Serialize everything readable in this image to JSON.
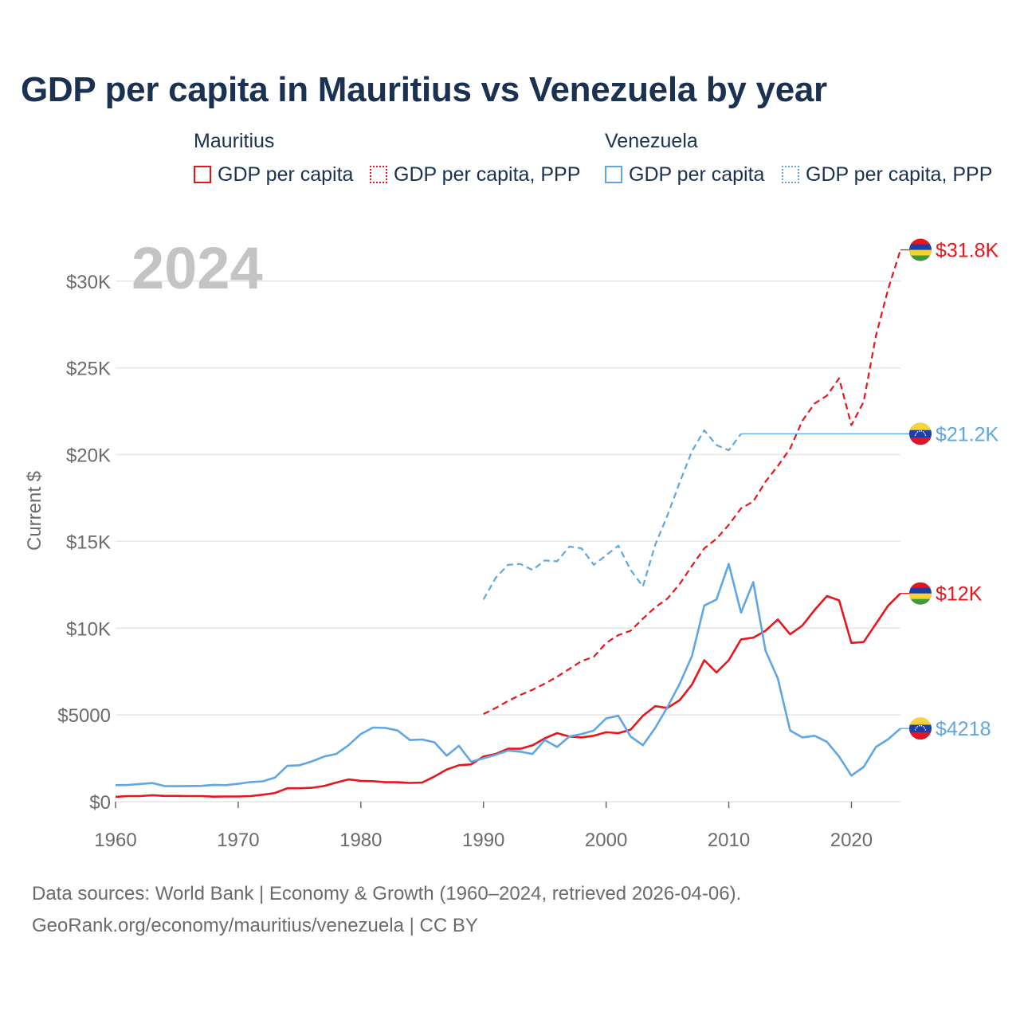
{
  "title": "GDP per capita in Mauritius vs Venezuela by year",
  "legend": {
    "mauritius": {
      "title": "Mauritius",
      "gdp": "GDP per capita",
      "ppp": "GDP per capita, PPP"
    },
    "venezuela": {
      "title": "Venezuela",
      "gdp": "GDP per capita",
      "ppp": "GDP per capita, PPP"
    }
  },
  "colors": {
    "mauritius": "#e8151c",
    "venezuela": "#5fa6e3",
    "grid": "#e6e6e6",
    "axis_text": "#6b6b6b",
    "year_watermark": "#c4c4c4"
  },
  "chart_data": {
    "type": "line",
    "year_label": "2024",
    "ylabel": "Current $",
    "xlim": [
      1960,
      2024
    ],
    "ylim": [
      0,
      32000
    ],
    "x_ticks": [
      {
        "value": 1960,
        "label": "1960"
      },
      {
        "value": 1970,
        "label": "1970"
      },
      {
        "value": 1980,
        "label": "1980"
      },
      {
        "value": 1990,
        "label": "1990"
      },
      {
        "value": 2000,
        "label": "2000"
      },
      {
        "value": 2010,
        "label": "2010"
      },
      {
        "value": 2020,
        "label": "2020"
      }
    ],
    "y_ticks": [
      {
        "value": 0,
        "label": "$0"
      },
      {
        "value": 5000,
        "label": "$5000"
      },
      {
        "value": 10000,
        "label": "$10K"
      },
      {
        "value": 15000,
        "label": "$15K"
      },
      {
        "value": 20000,
        "label": "$20K"
      },
      {
        "value": 25000,
        "label": "$25K"
      },
      {
        "value": 30000,
        "label": "$30K"
      }
    ],
    "series": [
      {
        "name": "Mauritius GDP per capita",
        "country": "mauritius",
        "style": "solid",
        "end_label": "$12K",
        "start_year": 1960,
        "values": [
          280,
          320,
          320,
          370,
          330,
          330,
          320,
          320,
          290,
          300,
          300,
          320,
          400,
          500,
          770,
          770,
          800,
          900,
          1100,
          1280,
          1200,
          1180,
          1120,
          1120,
          1080,
          1100,
          1450,
          1850,
          2100,
          2150,
          2600,
          2750,
          3050,
          3050,
          3250,
          3650,
          3950,
          3750,
          3700,
          3800,
          4000,
          3950,
          4150,
          4950,
          5500,
          5400,
          5850,
          6750,
          8150,
          7450,
          8150,
          9350,
          9450,
          9850,
          10500,
          9650,
          10150,
          11050,
          11850,
          11600,
          9150,
          9200,
          10250,
          11300,
          12000
        ]
      },
      {
        "name": "Mauritius GDP per capita, PPP",
        "country": "mauritius",
        "style": "dashed",
        "end_label": "$31.8K",
        "start_year": 1990,
        "values": [
          5050,
          5400,
          5800,
          6150,
          6450,
          6800,
          7200,
          7650,
          8100,
          8350,
          9150,
          9600,
          9850,
          10550,
          11200,
          11700,
          12550,
          13600,
          14600,
          15150,
          15950,
          16900,
          17300,
          18450,
          19350,
          20350,
          21950,
          22950,
          23400,
          24400,
          21700,
          23050,
          26850,
          29550,
          31800
        ]
      },
      {
        "name": "Venezuela GDP per capita",
        "country": "venezuela",
        "style": "solid",
        "end_label": "$4218",
        "start_year": 1960,
        "values": [
          950,
          960,
          1020,
          1070,
          900,
          890,
          900,
          910,
          970,
          950,
          1030,
          1130,
          1170,
          1390,
          2060,
          2100,
          2320,
          2600,
          2750,
          3250,
          3900,
          4270,
          4250,
          4100,
          3550,
          3580,
          3420,
          2650,
          3220,
          2300,
          2500,
          2700,
          2950,
          2880,
          2750,
          3550,
          3150,
          3750,
          3900,
          4100,
          4800,
          4950,
          3750,
          3250,
          4250,
          5450,
          6800,
          8400,
          11300,
          11650,
          13700,
          10900,
          12650,
          8700,
          7100,
          4100,
          3700,
          3800,
          3450,
          2600,
          1500,
          2000,
          3150,
          3600,
          4218
        ]
      },
      {
        "name": "Venezuela GDP per capita, PPP",
        "country": "venezuela",
        "style": "dashed",
        "end_label": "$21.2K",
        "start_year": 1990,
        "values": [
          11650,
          12900,
          13650,
          13700,
          13350,
          13900,
          13850,
          14700,
          14600,
          13650,
          14200,
          14750,
          13350,
          12400,
          14800,
          16500,
          18400,
          20200,
          21400,
          20550,
          20250,
          21200
        ],
        "carried_forward_to": 2024
      }
    ]
  },
  "footer": {
    "line1": "Data sources: World Bank | Economy & Growth (1960–2024, retrieved 2026-04-06).",
    "line2": "GeoRank.org/economy/mauritius/venezuela | CC BY"
  }
}
